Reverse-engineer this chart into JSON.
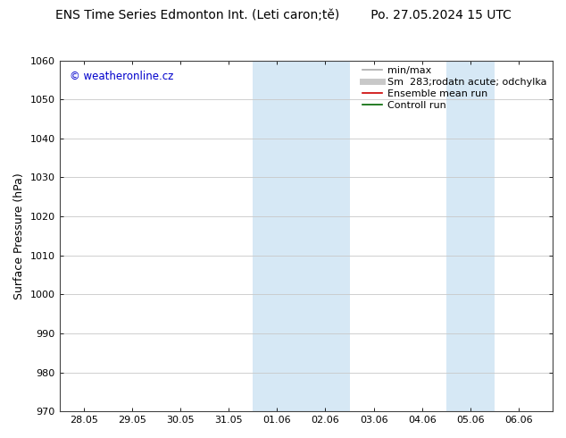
{
  "title": "ENS Time Series Edmonton Int. (Leti caron;tě)        Po. 27.05.2024 15 UTC",
  "ylabel": "Surface Pressure (hPa)",
  "ylim": [
    970,
    1060
  ],
  "yticks": [
    970,
    980,
    990,
    1000,
    1010,
    1020,
    1030,
    1040,
    1050,
    1060
  ],
  "xtick_labels": [
    "28.05",
    "29.05",
    "30.05",
    "31.05",
    "01.06",
    "02.06",
    "03.06",
    "04.06",
    "05.06",
    "06.06"
  ],
  "xtick_positions": [
    0,
    1,
    2,
    3,
    4,
    5,
    6,
    7,
    8,
    9
  ],
  "xlim": [
    -0.5,
    9.7
  ],
  "shaded_regions": [
    {
      "x_start": 3.5,
      "x_end": 4.5,
      "color": "#d6e8f5"
    },
    {
      "x_start": 4.5,
      "x_end": 5.5,
      "color": "#d6e8f5"
    },
    {
      "x_start": 7.5,
      "x_end": 8.5,
      "color": "#d6e8f5"
    }
  ],
  "watermark_text": "© weatheronline.cz",
  "watermark_color": "#0000cc",
  "bg_color": "#ffffff",
  "plot_bg_color": "#ffffff",
  "grid_color": "#c8c8c8",
  "legend_entries": [
    {
      "label": "min/max",
      "color": "#aaaaaa",
      "lw": 1.2,
      "ls": "-"
    },
    {
      "label": "Sm  283;rodatn acute; odchylka",
      "color": "#c8c8c8",
      "lw": 5,
      "ls": "-"
    },
    {
      "label": "Ensemble mean run",
      "color": "#cc0000",
      "lw": 1.2,
      "ls": "-"
    },
    {
      "label": "Controll run",
      "color": "#006600",
      "lw": 1.2,
      "ls": "-"
    }
  ],
  "title_fontsize": 10,
  "axis_label_fontsize": 9,
  "tick_fontsize": 8,
  "legend_fontsize": 8
}
